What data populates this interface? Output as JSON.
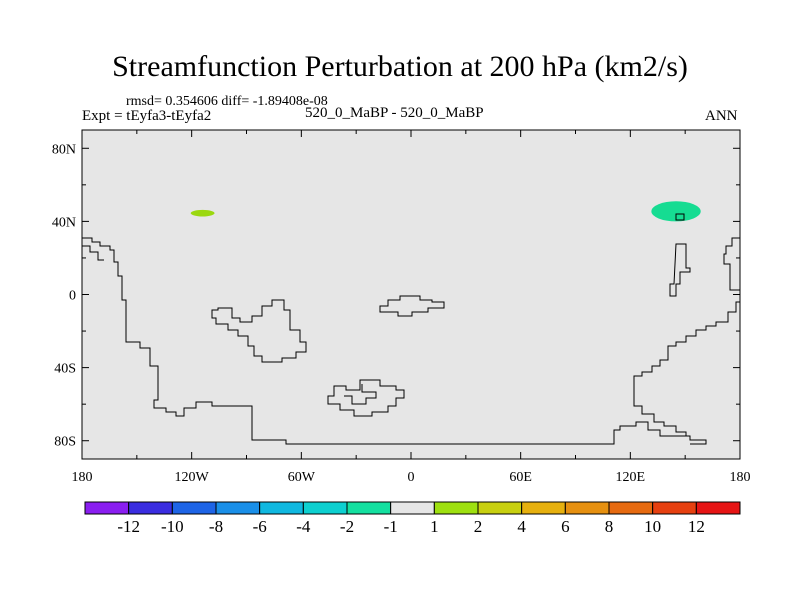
{
  "title": "Streamfunction Perturbation at 200 hPa (km2/s)",
  "stats": "rmsd= 0.354606 diff= -1.89408e-08",
  "expt": "Expt = tEyfa3-tEyfa2",
  "case": "520_0_MaBP - 520_0_MaBP",
  "season": "ANN",
  "map": {
    "lon_range": [
      -180,
      180
    ],
    "lat_range": [
      -90,
      90
    ],
    "background_color": "#e6e6e6",
    "lat_ticks": [
      {
        "value": 80,
        "label": "80N"
      },
      {
        "value": 40,
        "label": "40N"
      },
      {
        "value": 0,
        "label": "0"
      },
      {
        "value": -40,
        "label": "40S"
      },
      {
        "value": -80,
        "label": "80S"
      }
    ],
    "lon_ticks": [
      {
        "value": -180,
        "label": "180"
      },
      {
        "value": -120,
        "label": "120W"
      },
      {
        "value": -60,
        "label": "60W"
      },
      {
        "value": 0,
        "label": "0"
      },
      {
        "value": 60,
        "label": "60E"
      },
      {
        "value": 120,
        "label": "120E"
      },
      {
        "value": 180,
        "label": "180"
      }
    ],
    "features": [
      {
        "type": "ellipse",
        "lon": -114,
        "lat": 44.5,
        "rlon": 6.5,
        "rlat": 1.8,
        "color": "#9bd80f"
      },
      {
        "type": "ellipse",
        "lon": 145,
        "lat": 45.5,
        "rlon": 13.5,
        "rlat": 5.5,
        "color": "#16dc92"
      }
    ]
  },
  "colorbar": {
    "colors": [
      "#8a1ef0",
      "#3a2de0",
      "#1e64e6",
      "#1a8fe8",
      "#10b8e0",
      "#0dd0d0",
      "#14e0a0",
      "#e6e6e6",
      "#9ee010",
      "#c8d010",
      "#e6b00e",
      "#e69010",
      "#e66a10",
      "#e64010",
      "#e61414"
    ],
    "labels": [
      "-12",
      "-10",
      "-8",
      "-6",
      "-4",
      "-2",
      "-1",
      "1",
      "2",
      "4",
      "6",
      "8",
      "10",
      "12"
    ]
  }
}
